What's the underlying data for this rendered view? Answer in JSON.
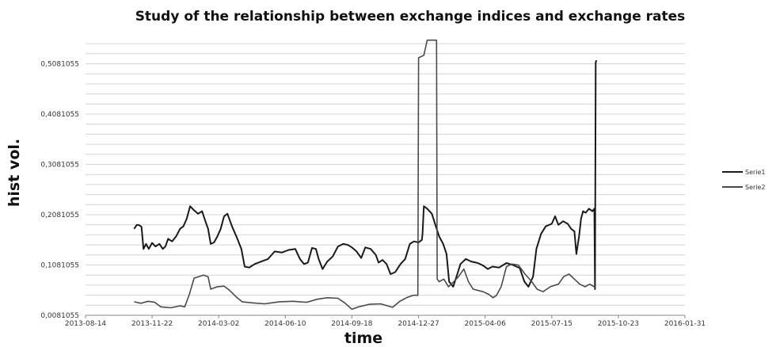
{
  "chart_data": {
    "type": "line",
    "title": "Study of the relationship between exchange indices and exchange rates",
    "xlabel": "time",
    "ylabel": "hist vol.",
    "x_ticks": [
      "2013-08-14",
      "2013-11-22",
      "2014-03-02",
      "2014-06-10",
      "2014-09-18",
      "2014-12-27",
      "2015-04-06",
      "2015-07-15",
      "2015-10-23",
      "2016-01-31"
    ],
    "y_ticks": [
      "0,0081055",
      "0,1081055",
      "0,2081055",
      "0,3081055",
      "0,4081055",
      "0,5081055"
    ],
    "ylim": [
      0.0081055,
      0.5581055
    ],
    "xlim": [
      "2013-08-14",
      "2016-01-31"
    ],
    "grid": true,
    "legend_position": "right",
    "series": [
      {
        "name": "Serie1",
        "color": "#1a1a1a",
        "points": [
          [
            "2013-10-26",
            0.18
          ],
          [
            "2013-10-30",
            0.188
          ],
          [
            "2013-11-03",
            0.187
          ],
          [
            "2013-11-06",
            0.184
          ],
          [
            "2013-11-09",
            0.14
          ],
          [
            "2013-11-13",
            0.15
          ],
          [
            "2013-11-17",
            0.14
          ],
          [
            "2013-11-22",
            0.152
          ],
          [
            "2013-11-27",
            0.145
          ],
          [
            "2013-12-03",
            0.15
          ],
          [
            "2013-12-08",
            0.14
          ],
          [
            "2013-12-12",
            0.145
          ],
          [
            "2013-12-16",
            0.16
          ],
          [
            "2013-12-22",
            0.155
          ],
          [
            "2013-12-28",
            0.165
          ],
          [
            "2014-01-03",
            0.18
          ],
          [
            "2014-01-08",
            0.185
          ],
          [
            "2014-01-13",
            0.2
          ],
          [
            "2014-01-18",
            0.225
          ],
          [
            "2014-01-23",
            0.218
          ],
          [
            "2014-01-30",
            0.21
          ],
          [
            "2014-02-05",
            0.215
          ],
          [
            "2014-02-10",
            0.195
          ],
          [
            "2014-02-14",
            0.18
          ],
          [
            "2014-02-18",
            0.15
          ],
          [
            "2014-02-23",
            0.153
          ],
          [
            "2014-02-28",
            0.165
          ],
          [
            "2014-03-05",
            0.18
          ],
          [
            "2014-03-10",
            0.205
          ],
          [
            "2014-03-15",
            0.21
          ],
          [
            "2014-03-22",
            0.185
          ],
          [
            "2014-03-30",
            0.16
          ],
          [
            "2014-04-05",
            0.14
          ],
          [
            "2014-04-10",
            0.105
          ],
          [
            "2014-04-17",
            0.103
          ],
          [
            "2014-04-25",
            0.11
          ],
          [
            "2014-05-05",
            0.115
          ],
          [
            "2014-05-15",
            0.12
          ],
          [
            "2014-05-25",
            0.135
          ],
          [
            "2014-06-05",
            0.133
          ],
          [
            "2014-06-15",
            0.138
          ],
          [
            "2014-06-25",
            0.14
          ],
          [
            "2014-07-02",
            0.12
          ],
          [
            "2014-07-08",
            0.11
          ],
          [
            "2014-07-14",
            0.113
          ],
          [
            "2014-07-20",
            0.142
          ],
          [
            "2014-07-26",
            0.14
          ],
          [
            "2014-07-30",
            0.12
          ],
          [
            "2014-08-05",
            0.1
          ],
          [
            "2014-08-12",
            0.115
          ],
          [
            "2014-08-20",
            0.125
          ],
          [
            "2014-08-28",
            0.145
          ],
          [
            "2014-09-05",
            0.15
          ],
          [
            "2014-09-12",
            0.148
          ],
          [
            "2014-09-18",
            0.143
          ],
          [
            "2014-09-25",
            0.135
          ],
          [
            "2014-10-02",
            0.122
          ],
          [
            "2014-10-08",
            0.143
          ],
          [
            "2014-10-16",
            0.14
          ],
          [
            "2014-10-24",
            0.128
          ],
          [
            "2014-10-28",
            0.113
          ],
          [
            "2014-11-03",
            0.118
          ],
          [
            "2014-11-09",
            0.11
          ],
          [
            "2014-11-15",
            0.09
          ],
          [
            "2014-11-22",
            0.094
          ],
          [
            "2014-11-30",
            0.11
          ],
          [
            "2014-12-07",
            0.12
          ],
          [
            "2014-12-14",
            0.15
          ],
          [
            "2014-12-20",
            0.155
          ],
          [
            "2014-12-27",
            0.153
          ],
          [
            "2015-01-01",
            0.158
          ],
          [
            "2015-01-02",
            0.17
          ],
          [
            "2015-01-04",
            0.225
          ],
          [
            "2015-01-09",
            0.22
          ],
          [
            "2015-01-16",
            0.21
          ],
          [
            "2015-01-22",
            0.185
          ],
          [
            "2015-01-27",
            0.165
          ],
          [
            "2015-02-02",
            0.15
          ],
          [
            "2015-02-07",
            0.13
          ],
          [
            "2015-02-11",
            0.075
          ],
          [
            "2015-02-17",
            0.065
          ],
          [
            "2015-02-22",
            0.085
          ],
          [
            "2015-02-28",
            0.11
          ],
          [
            "2015-03-08",
            0.12
          ],
          [
            "2015-03-16",
            0.115
          ],
          [
            "2015-03-26",
            0.112
          ],
          [
            "2015-04-03",
            0.107
          ],
          [
            "2015-04-10",
            0.1
          ],
          [
            "2015-04-17",
            0.105
          ],
          [
            "2015-04-27",
            0.103
          ],
          [
            "2015-05-08",
            0.112
          ],
          [
            "2015-05-18",
            0.108
          ],
          [
            "2015-05-28",
            0.102
          ],
          [
            "2015-06-04",
            0.075
          ],
          [
            "2015-06-10",
            0.065
          ],
          [
            "2015-06-17",
            0.085
          ],
          [
            "2015-06-22",
            0.14
          ],
          [
            "2015-06-29",
            0.17
          ],
          [
            "2015-07-06",
            0.185
          ],
          [
            "2015-07-15",
            0.19
          ],
          [
            "2015-07-20",
            0.205
          ],
          [
            "2015-07-25",
            0.188
          ],
          [
            "2015-08-01",
            0.195
          ],
          [
            "2015-08-08",
            0.19
          ],
          [
            "2015-08-13",
            0.18
          ],
          [
            "2015-08-18",
            0.175
          ],
          [
            "2015-08-21",
            0.13
          ],
          [
            "2015-08-25",
            0.165
          ],
          [
            "2015-08-28",
            0.2
          ],
          [
            "2015-08-31",
            0.215
          ],
          [
            "2015-09-04",
            0.212
          ],
          [
            "2015-09-09",
            0.22
          ],
          [
            "2015-09-14",
            0.215
          ],
          [
            "2015-09-17",
            0.22
          ],
          [
            "2015-09-18",
            0.06
          ],
          [
            "2015-09-19",
            0.51
          ],
          [
            "2015-09-20",
            0.515
          ]
        ]
      },
      {
        "name": "Serie2",
        "color": "#4a4a4a",
        "points": [
          [
            "2013-10-26",
            0.035
          ],
          [
            "2013-11-05",
            0.032
          ],
          [
            "2013-11-16",
            0.036
          ],
          [
            "2013-11-26",
            0.034
          ],
          [
            "2013-12-05",
            0.025
          ],
          [
            "2013-12-20",
            0.023
          ],
          [
            "2014-01-03",
            0.027
          ],
          [
            "2014-01-10",
            0.025
          ],
          [
            "2014-01-17",
            0.05
          ],
          [
            "2014-01-24",
            0.082
          ],
          [
            "2014-02-07",
            0.088
          ],
          [
            "2014-02-14",
            0.085
          ],
          [
            "2014-02-18",
            0.06
          ],
          [
            "2014-02-28",
            0.065
          ],
          [
            "2014-03-10",
            0.066
          ],
          [
            "2014-03-18",
            0.058
          ],
          [
            "2014-03-28",
            0.045
          ],
          [
            "2014-04-06",
            0.035
          ],
          [
            "2014-04-20",
            0.033
          ],
          [
            "2014-05-10",
            0.031
          ],
          [
            "2014-06-01",
            0.035
          ],
          [
            "2014-06-22",
            0.036
          ],
          [
            "2014-07-12",
            0.034
          ],
          [
            "2014-07-28",
            0.04
          ],
          [
            "2014-08-12",
            0.043
          ],
          [
            "2014-08-28",
            0.042
          ],
          [
            "2014-09-08",
            0.032
          ],
          [
            "2014-09-18",
            0.02
          ],
          [
            "2014-09-28",
            0.025
          ],
          [
            "2014-10-14",
            0.03
          ],
          [
            "2014-10-31",
            0.031
          ],
          [
            "2014-11-18",
            0.024
          ],
          [
            "2014-11-29",
            0.036
          ],
          [
            "2014-12-09",
            0.043
          ],
          [
            "2014-12-19",
            0.048
          ],
          [
            "2014-12-26",
            0.048
          ],
          [
            "2014-12-27",
            0.52
          ],
          [
            "2015-01-04",
            0.525
          ],
          [
            "2015-01-09",
            0.555
          ],
          [
            "2015-01-23",
            0.555
          ],
          [
            "2015-01-24",
            0.08
          ],
          [
            "2015-01-27",
            0.075
          ],
          [
            "2015-02-03",
            0.08
          ],
          [
            "2015-02-10",
            0.065
          ],
          [
            "2015-02-18",
            0.075
          ],
          [
            "2015-02-25",
            0.085
          ],
          [
            "2015-03-05",
            0.1
          ],
          [
            "2015-03-12",
            0.075
          ],
          [
            "2015-03-19",
            0.06
          ],
          [
            "2015-04-03",
            0.055
          ],
          [
            "2015-04-11",
            0.05
          ],
          [
            "2015-04-18",
            0.043
          ],
          [
            "2015-04-23",
            0.048
          ],
          [
            "2015-04-30",
            0.065
          ],
          [
            "2015-05-08",
            0.105
          ],
          [
            "2015-05-16",
            0.11
          ],
          [
            "2015-05-26",
            0.108
          ],
          [
            "2015-06-05",
            0.09
          ],
          [
            "2015-06-15",
            0.075
          ],
          [
            "2015-06-23",
            0.06
          ],
          [
            "2015-07-02",
            0.055
          ],
          [
            "2015-07-13",
            0.065
          ],
          [
            "2015-07-25",
            0.07
          ],
          [
            "2015-08-02",
            0.085
          ],
          [
            "2015-08-10",
            0.09
          ],
          [
            "2015-08-18",
            0.08
          ],
          [
            "2015-08-26",
            0.07
          ],
          [
            "2015-09-03",
            0.065
          ],
          [
            "2015-09-10",
            0.07
          ],
          [
            "2015-09-18",
            0.064
          ]
        ]
      }
    ]
  }
}
